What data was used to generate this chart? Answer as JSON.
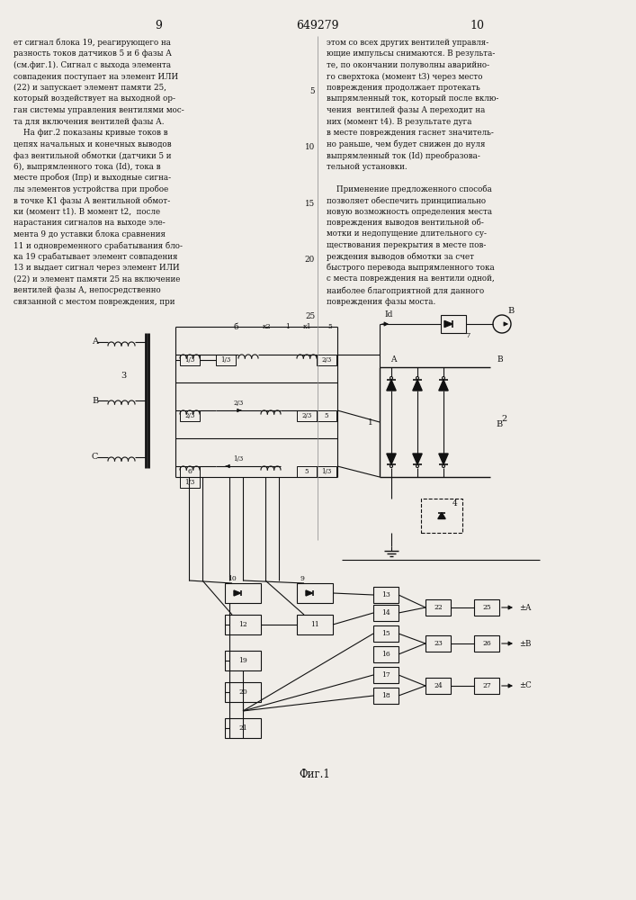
{
  "page_number_left": "9",
  "page_number_center": "649279",
  "page_number_right": "10",
  "left_col": [
    "ет сигнал блока 19, реагирующего на",
    "разность токов датчиков 5 и 6 фазы А",
    "(см.фиг.1). Сигнал с выхода элемента",
    "совпадения поступает на элемент ИЛИ",
    "(22) и запускает элемент памяти 25,",
    "который воздействует на выходной ор-",
    "ган системы управления вентилями мос-",
    "та для включения вентилей фазы А.",
    "    На фиг.2 показаны кривые токов в",
    "цепях начальных и конечных выводов",
    "фаз вентильной обмотки (датчики 5 и",
    "6), выпрямленного тока (Id), тока в",
    "месте пробоя (Iпр) и выходные сигна-",
    "лы элементов устройства при пробое",
    "в точке К1 фазы А вентильной обмот-",
    "ки (момент t1). В момент t2,  после",
    "нарастания сигналов на выходе эле-",
    "мента 9 до уставки блока сравнения",
    "11 и одновременного срабатывания бло-",
    "ка 19 срабатывает элемент совпадения",
    "13 и выдает сигнал через элемент ИЛИ",
    "(22) и элемент памяти 25 на включение",
    "вентилей фазы А, непосредственно",
    "связанной с местом повреждения, при"
  ],
  "right_col": [
    "этом со всех других вентилей управля-",
    "ющие импульсы снимаются. В результа-",
    "те, по окончании полуволны аварийно-",
    "го сверхтока (момент t3) через место",
    "повреждения продолжает протекать",
    "выпрямленный ток, который после вклю-",
    "чения  вентилей фазы А переходит на",
    "них (момент t4). В результате дуга",
    "в месте повреждения гаснет значитель-",
    "но раньше, чем будет снижен до нуля",
    "выпрямленный ток (Id) преобразова-",
    "тельной установки.",
    "",
    "    Применение предложенного способа",
    "позволяет обеспечить принципиально",
    "новую возможность определения места",
    "повреждения выводов вентильной об-",
    "мотки и недопущение длительного су-",
    "ществования перекрытия в месте пов-",
    "реждения выводов обмотки за счет",
    "быстрого перевода выпрямленного тока",
    "с места повреждения на вентили одной,",
    "наиболее благоприятной для данного",
    "повреждения фазы моста."
  ],
  "bg": "#f0ede8",
  "tc": "#111111"
}
